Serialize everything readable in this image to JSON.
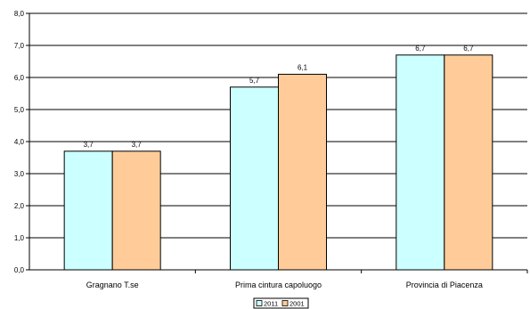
{
  "chart_data": {
    "type": "bar",
    "title": "",
    "xlabel": "",
    "ylabel": "",
    "categories": [
      "Gragnano T.se",
      "Prima cintura capoluogo",
      "Provincia di Piacenza"
    ],
    "series": [
      {
        "name": "2011",
        "values": [
          3.7,
          5.7,
          6.7
        ],
        "labels": [
          "3,7",
          "5,7",
          "6,7"
        ],
        "color": "#ccffff"
      },
      {
        "name": "2001",
        "values": [
          3.7,
          6.1,
          6.7
        ],
        "labels": [
          "3,7",
          "6,1",
          "6,7"
        ],
        "color": "#ffcc99"
      }
    ],
    "ylim": [
      0,
      8
    ],
    "yticks": [
      0,
      1,
      2,
      3,
      4,
      5,
      6,
      7,
      8
    ],
    "ytick_labels": [
      "0,0",
      "1,0",
      "2,0",
      "3,0",
      "4,0",
      "5,0",
      "6,0",
      "7,0",
      "8,0"
    ],
    "grid": "horizontal",
    "legend_position": "bottom-center"
  }
}
